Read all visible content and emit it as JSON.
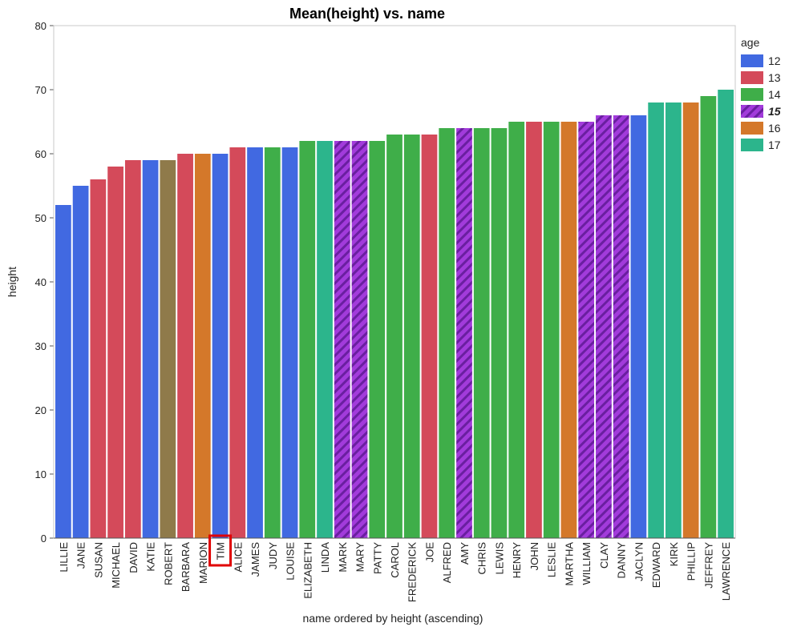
{
  "chart_data": {
    "type": "bar",
    "title": "Mean(height) vs. name",
    "xlabel": "name ordered by height (ascending)",
    "ylabel": "height",
    "ylim": [
      0,
      80
    ],
    "yticks": [
      0,
      10,
      20,
      30,
      40,
      50,
      60,
      70,
      80
    ],
    "grid": false,
    "legend_title": "age",
    "legend_position": "right",
    "legend": [
      {
        "label": "12",
        "color": "#4169e1",
        "hatched": false,
        "emphasized": false
      },
      {
        "label": "13",
        "color": "#d44a5a",
        "hatched": false,
        "emphasized": false
      },
      {
        "label": "14",
        "color": "#3fae49",
        "hatched": false,
        "emphasized": false
      },
      {
        "label": "15",
        "color": "#a23bdb",
        "hatched": true,
        "emphasized": true
      },
      {
        "label": "16",
        "color": "#d4782a",
        "hatched": false,
        "emphasized": false
      },
      {
        "label": "17",
        "color": "#2cb58c",
        "hatched": false,
        "emphasized": false
      }
    ],
    "highlighted_category": "TIM",
    "bars": [
      {
        "name": "LILLIE",
        "value": 52,
        "age": "12"
      },
      {
        "name": "JANE",
        "value": 55,
        "age": "12"
      },
      {
        "name": "SUSAN",
        "value": 56,
        "age": "13"
      },
      {
        "name": "MICHAEL",
        "value": 58,
        "age": "13"
      },
      {
        "name": "DAVID",
        "value": 59,
        "age": "13"
      },
      {
        "name": "KATIE",
        "value": 59,
        "age": "12"
      },
      {
        "name": "ROBERT",
        "value": 59,
        "age": "mixed",
        "color": "#8f7a4a"
      },
      {
        "name": "BARBARA",
        "value": 60,
        "age": "13"
      },
      {
        "name": "MARION",
        "value": 60,
        "age": "16"
      },
      {
        "name": "TIM",
        "value": 60,
        "age": "12"
      },
      {
        "name": "ALICE",
        "value": 61,
        "age": "13"
      },
      {
        "name": "JAMES",
        "value": 61,
        "age": "12"
      },
      {
        "name": "JUDY",
        "value": 61,
        "age": "14"
      },
      {
        "name": "LOUISE",
        "value": 61,
        "age": "12"
      },
      {
        "name": "ELIZABETH",
        "value": 62,
        "age": "14"
      },
      {
        "name": "LINDA",
        "value": 62,
        "age": "17"
      },
      {
        "name": "MARK",
        "value": 62,
        "age": "15"
      },
      {
        "name": "MARY",
        "value": 62,
        "age": "15"
      },
      {
        "name": "PATTY",
        "value": 62,
        "age": "14"
      },
      {
        "name": "CAROL",
        "value": 63,
        "age": "14"
      },
      {
        "name": "FREDERICK",
        "value": 63,
        "age": "14"
      },
      {
        "name": "JOE",
        "value": 63,
        "age": "13"
      },
      {
        "name": "ALFRED",
        "value": 64,
        "age": "14"
      },
      {
        "name": "AMY",
        "value": 64,
        "age": "15"
      },
      {
        "name": "CHRIS",
        "value": 64,
        "age": "14"
      },
      {
        "name": "LEWIS",
        "value": 64,
        "age": "14"
      },
      {
        "name": "HENRY",
        "value": 65,
        "age": "14"
      },
      {
        "name": "JOHN",
        "value": 65,
        "age": "13"
      },
      {
        "name": "LESLIE",
        "value": 65,
        "age": "14"
      },
      {
        "name": "MARTHA",
        "value": 65,
        "age": "16"
      },
      {
        "name": "WILLIAM",
        "value": 65,
        "age": "15"
      },
      {
        "name": "CLAY",
        "value": 66,
        "age": "15"
      },
      {
        "name": "DANNY",
        "value": 66,
        "age": "15"
      },
      {
        "name": "JACLYN",
        "value": 66,
        "age": "12"
      },
      {
        "name": "EDWARD",
        "value": 68,
        "age": "17"
      },
      {
        "name": "KIRK",
        "value": 68,
        "age": "17"
      },
      {
        "name": "PHILLIP",
        "value": 68,
        "age": "16"
      },
      {
        "name": "JEFFREY",
        "value": 69,
        "age": "14"
      },
      {
        "name": "LAWRENCE",
        "value": 70,
        "age": "17"
      }
    ]
  }
}
